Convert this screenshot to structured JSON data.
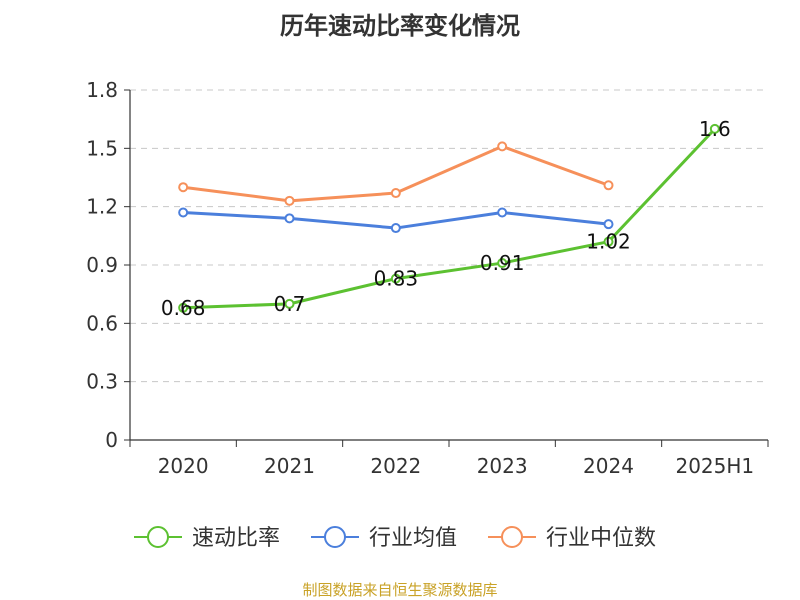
{
  "chart_data": {
    "type": "line",
    "title": "历年速动比率变化情况",
    "categories": [
      "2020",
      "2021",
      "2022",
      "2023",
      "2024",
      "2025H1"
    ],
    "ylim": [
      0,
      1.8
    ],
    "yticks": [
      "0",
      "0.3",
      "0.6",
      "0.9",
      "1.2",
      "1.5",
      "1.8"
    ],
    "grid": true,
    "legend_position": "bottom",
    "series": [
      {
        "name": "速动比率",
        "color": "#5cc131",
        "values": [
          0.68,
          0.7,
          0.83,
          0.91,
          1.02,
          1.6
        ],
        "labels": [
          "0.68",
          "0.7",
          "0.83",
          "0.91",
          "1.02",
          "1.6"
        ]
      },
      {
        "name": "行业均值",
        "color": "#4b7fdc",
        "values": [
          1.17,
          1.14,
          1.09,
          1.17,
          1.11,
          null
        ]
      },
      {
        "name": "行业中位数",
        "color": "#f6905a",
        "values": [
          1.3,
          1.23,
          1.27,
          1.51,
          1.31,
          null
        ]
      }
    ]
  },
  "source_note": "制图数据来自恒生聚源数据库"
}
